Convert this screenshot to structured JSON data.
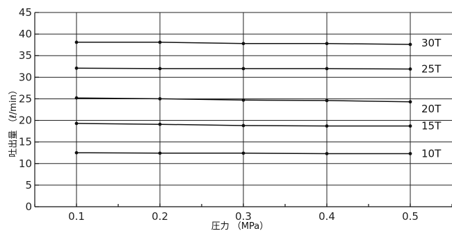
{
  "chart_data": {
    "type": "line",
    "title": "",
    "xlabel": "圧力 （MPa）",
    "ylabel": "吐出量 （ℓ/min）",
    "x": [
      0.1,
      0.2,
      0.3,
      0.4,
      0.5
    ],
    "x_ticks": [
      "0.1",
      "0.2",
      "0.3",
      "0.4",
      "0.5"
    ],
    "xlim": [
      0.05,
      0.55
    ],
    "ylim": [
      0,
      45
    ],
    "y_ticks": [
      "0",
      "5",
      "10",
      "15",
      "20",
      "25",
      "30",
      "35",
      "40",
      "45"
    ],
    "grid": true,
    "series": [
      {
        "name": "30T",
        "values": [
          38.1,
          38.1,
          37.8,
          37.8,
          37.6
        ]
      },
      {
        "name": "25T",
        "values": [
          32.1,
          32.0,
          32.0,
          32.0,
          31.9
        ]
      },
      {
        "name": "20T",
        "values": [
          25.2,
          25.0,
          24.7,
          24.6,
          24.3
        ]
      },
      {
        "name": "15T",
        "values": [
          19.3,
          19.1,
          18.8,
          18.7,
          18.7
        ]
      },
      {
        "name": "10T",
        "values": [
          12.5,
          12.4,
          12.4,
          12.3,
          12.3
        ]
      }
    ]
  }
}
